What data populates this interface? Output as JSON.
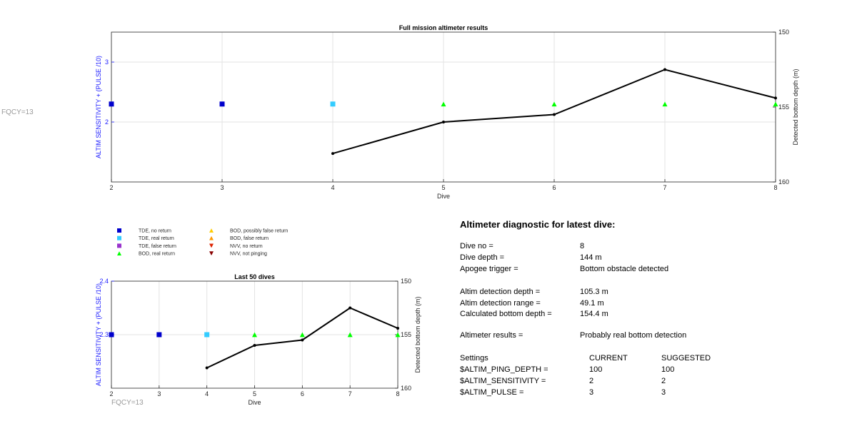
{
  "side_label": "FQCY=13",
  "legend": [
    {
      "label": "TDE, no return",
      "marker": "square",
      "color": "#0000cc"
    },
    {
      "label": "TDE, real return",
      "marker": "square",
      "color": "#33ccff"
    },
    {
      "label": "TDE, false return",
      "marker": "square",
      "color": "#9933cc"
    },
    {
      "label": "BOD, real return",
      "marker": "triangle-up",
      "color": "#00ff00"
    },
    {
      "label": "BOD, possibly false return",
      "marker": "triangle-up",
      "color": "#ffcc00"
    },
    {
      "label": "BOD, false return",
      "marker": "triangle-up",
      "color": "#ff9900"
    },
    {
      "label": "NVV, no return",
      "marker": "triangle-down",
      "color": "#dd2200"
    },
    {
      "label": "NVV, not pinging",
      "marker": "triangle-down",
      "color": "#880000"
    }
  ],
  "diagnostic": {
    "title": "Altimeter diagnostic for latest dive:",
    "rows": [
      {
        "label": "Dive no =",
        "value": "8"
      },
      {
        "label": "Dive depth =",
        "value": "144 m"
      },
      {
        "label": "Apogee trigger =",
        "value": "Bottom obstacle detected"
      },
      {
        "label": "Altim detection depth =",
        "value": "105.3 m"
      },
      {
        "label": "Altim detection range =",
        "value": "49.1 m"
      },
      {
        "label": "Calculated bottom depth =",
        "value": "154.4 m"
      },
      {
        "label": "Altimeter results =",
        "value": "Probably real bottom detection"
      }
    ],
    "settings_header": [
      "Settings",
      "CURRENT",
      "SUGGESTED"
    ],
    "settings": [
      {
        "name": "$ALTIM_PING_DEPTH =",
        "current": "100",
        "suggested": "100"
      },
      {
        "name": "$ALTIM_SENSITIVITY =",
        "current": "2",
        "suggested": "2"
      },
      {
        "name": "$ALTIM_PULSE =",
        "current": "3",
        "suggested": "3"
      }
    ]
  },
  "chart_data": [
    {
      "type": "scatter",
      "title": "Full mission altimeter results",
      "xlabel": "Dive",
      "ylabel_left": "ALTIM SENSITIVITY + (PULSE /10)",
      "ylabel_right": "Detected bottom depth (m)",
      "xlim": [
        2,
        8
      ],
      "xticks": [
        "2",
        "3",
        "4",
        "5",
        "6",
        "7",
        "8"
      ],
      "ylim_left": [
        1,
        3.5
      ],
      "yticks_left": [
        "2",
        "3"
      ],
      "ylim_right": [
        160,
        150
      ],
      "yticks_right": [
        "150",
        "155",
        "160"
      ],
      "grid": true,
      "markers": [
        {
          "x": 2,
          "y": 2.3,
          "type": "TDE, no return"
        },
        {
          "x": 3,
          "y": 2.3,
          "type": "TDE, no return"
        },
        {
          "x": 4,
          "y": 2.3,
          "type": "TDE, real return"
        },
        {
          "x": 5,
          "y": 2.3,
          "type": "BOD, real return"
        },
        {
          "x": 6,
          "y": 2.3,
          "type": "BOD, real return"
        },
        {
          "x": 7,
          "y": 2.3,
          "type": "BOD, real return"
        },
        {
          "x": 8,
          "y": 2.3,
          "type": "BOD, real return"
        }
      ],
      "depth_line": {
        "x": [
          4,
          5,
          6,
          7,
          8
        ],
        "y": [
          158.1,
          156.0,
          155.5,
          152.5,
          154.4
        ]
      }
    },
    {
      "type": "scatter",
      "title": "Last 50 dives",
      "xlabel": "Dive",
      "ylabel_left": "ALTIM SENSITIVITY + (PULSE /10)",
      "ylabel_right": "Detected bottom depth (m)",
      "xlim": [
        2,
        8
      ],
      "xticks": [
        "2",
        "3",
        "4",
        "5",
        "6",
        "7",
        "8"
      ],
      "ylim_left": [
        2.2,
        2.4
      ],
      "yticks_left": [
        "2.3",
        "2.4"
      ],
      "ylim_right": [
        160,
        150
      ],
      "yticks_right": [
        "150",
        "155",
        "160"
      ],
      "grid": true,
      "markers": [
        {
          "x": 2,
          "y": 2.3,
          "type": "TDE, no return"
        },
        {
          "x": 3,
          "y": 2.3,
          "type": "TDE, no return"
        },
        {
          "x": 4,
          "y": 2.3,
          "type": "TDE, real return"
        },
        {
          "x": 5,
          "y": 2.3,
          "type": "BOD, real return"
        },
        {
          "x": 6,
          "y": 2.3,
          "type": "BOD, real return"
        },
        {
          "x": 7,
          "y": 2.3,
          "type": "BOD, real return"
        },
        {
          "x": 8,
          "y": 2.3,
          "type": "BOD, real return"
        }
      ],
      "depth_line": {
        "x": [
          4,
          5,
          6,
          7,
          8
        ],
        "y": [
          158.1,
          156.0,
          155.5,
          152.5,
          154.4
        ]
      },
      "footnote": "FQCY=13"
    }
  ]
}
